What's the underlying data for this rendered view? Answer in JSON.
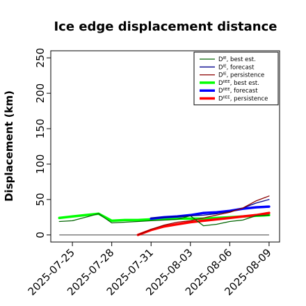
{
  "chart_data": {
    "type": "line",
    "title": "Ice edge displacement distance",
    "xlabel": "",
    "ylabel": "Displacement (km)",
    "x_ticks": [
      "2025-07-25",
      "2025-07-28",
      "2025-07-31",
      "2025-08-03",
      "2025-08-06",
      "2025-08-09"
    ],
    "highlight_tick": "2025-07-31",
    "highlight_color": "#228b22",
    "ylim": [
      -10,
      260
    ],
    "y_ticks": [
      0,
      50,
      100,
      150,
      200,
      250
    ],
    "grid": false,
    "legend_position": "top-right",
    "series": [
      {
        "name": "D^IE, best est.",
        "color": "#006400",
        "width": 1.3,
        "x": [
          "2025-07-24",
          "2025-07-25",
          "2025-07-26",
          "2025-07-27",
          "2025-07-28",
          "2025-07-29",
          "2025-07-30",
          "2025-07-31",
          "2025-08-01",
          "2025-08-02",
          "2025-08-03",
          "2025-08-04",
          "2025-08-05",
          "2025-08-06",
          "2025-08-07",
          "2025-08-08",
          "2025-08-09"
        ],
        "values": [
          19,
          20,
          25,
          30,
          17,
          18,
          19,
          20,
          21,
          22,
          27,
          13,
          15,
          19,
          21,
          27,
          28
        ]
      },
      {
        "name": "D^IE, forecast",
        "color": "#00008b",
        "width": 1.3,
        "x": [
          "2025-07-31",
          "2025-08-01",
          "2025-08-02",
          "2025-08-03",
          "2025-08-04",
          "2025-08-05",
          "2025-08-06",
          "2025-08-07",
          "2025-08-08",
          "2025-08-09"
        ],
        "values": [
          24,
          25,
          26,
          27,
          28,
          30,
          33,
          38,
          45,
          50
        ]
      },
      {
        "name": "D^IE, persistence",
        "color": "#8b0000",
        "width": 1.3,
        "x": [
          "2025-07-30",
          "2025-07-31",
          "2025-08-01",
          "2025-08-02",
          "2025-08-03",
          "2025-08-04",
          "2025-08-05",
          "2025-08-06",
          "2025-08-07",
          "2025-08-08",
          "2025-08-09"
        ],
        "values": [
          0,
          8,
          14,
          18,
          20,
          24,
          28,
          32,
          38,
          48,
          55
        ]
      },
      {
        "name": "D^IIEE, best est.",
        "color": "#00ff00",
        "width": 3.5,
        "x": [
          "2025-07-24",
          "2025-07-25",
          "2025-07-26",
          "2025-07-27",
          "2025-07-28",
          "2025-07-29",
          "2025-07-30",
          "2025-07-31",
          "2025-08-01",
          "2025-08-02",
          "2025-08-03",
          "2025-08-04",
          "2025-08-05",
          "2025-08-06",
          "2025-08-07",
          "2025-08-08",
          "2025-08-09"
        ],
        "values": [
          24,
          26,
          28,
          30,
          20,
          21,
          21,
          22,
          22,
          23,
          23,
          23,
          24,
          25,
          26,
          27,
          28
        ]
      },
      {
        "name": "D^IIEE, forecast",
        "color": "#0000ff",
        "width": 3.5,
        "x": [
          "2025-07-31",
          "2025-08-01",
          "2025-08-02",
          "2025-08-03",
          "2025-08-04",
          "2025-08-05",
          "2025-08-06",
          "2025-08-07",
          "2025-08-08",
          "2025-08-09"
        ],
        "values": [
          23,
          25,
          26,
          28,
          31,
          32,
          34,
          37,
          39,
          40
        ]
      },
      {
        "name": "D^IIEE, persistence",
        "color": "#ff0000",
        "width": 3.5,
        "x": [
          "2025-07-30",
          "2025-07-31",
          "2025-08-01",
          "2025-08-02",
          "2025-08-03",
          "2025-08-04",
          "2025-08-05",
          "2025-08-06",
          "2025-08-07",
          "2025-08-08",
          "2025-08-09"
        ],
        "values": [
          0,
          7,
          12,
          15,
          18,
          20,
          22,
          24,
          26,
          28,
          31
        ]
      }
    ],
    "legend": [
      {
        "base": "D",
        "sup": "IE",
        "label": ", best est."
      },
      {
        "base": "D",
        "sup": "IE",
        "label": ", forecast"
      },
      {
        "base": "D",
        "sup": "IE",
        "label": ", persistence"
      },
      {
        "base": "D",
        "sup": "IIEE",
        "label": ", best est."
      },
      {
        "base": "D",
        "sup": "IIEE",
        "label": ", forecast"
      },
      {
        "base": "D",
        "sup": "IIEE",
        "label": ", persistence"
      }
    ],
    "zero_line": {
      "color": "#555555",
      "x": [
        "2025-07-24",
        "2025-08-09"
      ],
      "values": [
        0,
        0
      ]
    }
  }
}
